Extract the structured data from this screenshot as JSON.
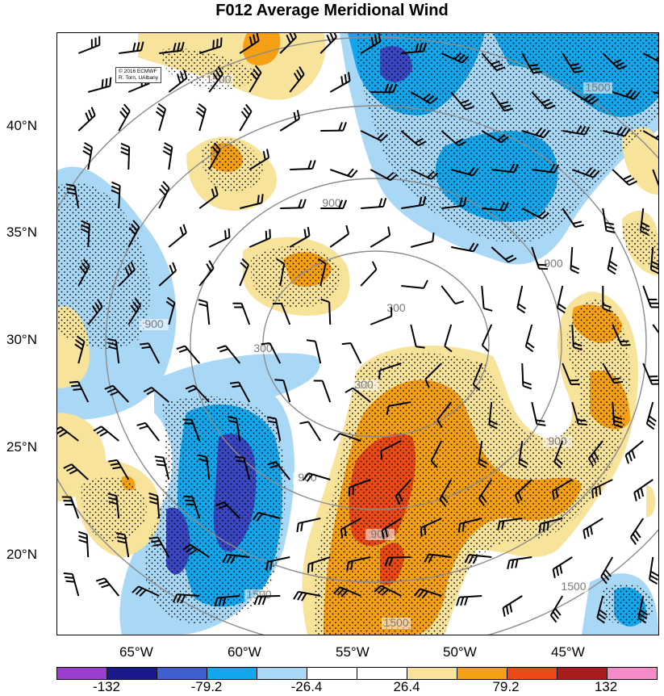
{
  "title": "F012 Average Meridional Wind",
  "credit": {
    "line1": "© 2016 ECMWF",
    "line2": "R. Torn, UAlbany"
  },
  "lat_labels": [
    "40°N",
    "35°N",
    "30°N",
    "25°N",
    "20°N"
  ],
  "lon_labels": [
    "65°W",
    "60°W",
    "55°W",
    "50°W",
    "45°W"
  ],
  "contour_labels": [
    "1500",
    "1500",
    "900",
    "900",
    "300",
    "300",
    "300",
    "900",
    "900",
    "900",
    "900",
    "1500",
    "1500",
    "1500"
  ],
  "colorbar": {
    "colors": [
      "#9b3fd0",
      "#1a1a8c",
      "#3f5fd0",
      "#12a7ec",
      "#a8d8f5",
      "#ffffff",
      "#ffffff",
      "#f8e39a",
      "#f5a014",
      "#ec4a14",
      "#a81c1c",
      "#f58cc8"
    ],
    "ticks": [
      "-132",
      "-79.2",
      "-26.4",
      "26.4",
      "79.2",
      "132"
    ]
  },
  "palette": {
    "dark_blue": "#3b47c2",
    "blue": "#12a7ec",
    "light_blue": "#a8d8f5",
    "light_yellow": "#f8e39a",
    "orange": "#f5a014",
    "red": "#ec4a14",
    "contour": "#8c8c8c"
  }
}
